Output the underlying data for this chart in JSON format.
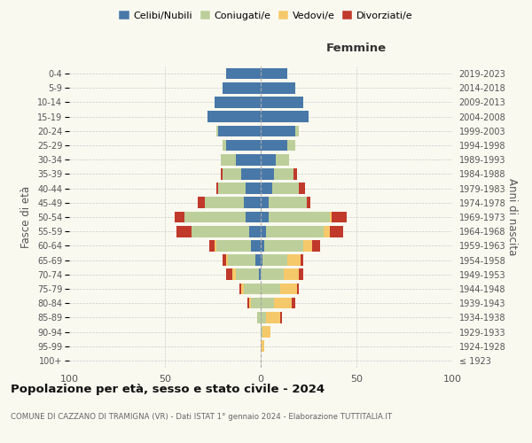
{
  "age_groups": [
    "100+",
    "95-99",
    "90-94",
    "85-89",
    "80-84",
    "75-79",
    "70-74",
    "65-69",
    "60-64",
    "55-59",
    "50-54",
    "45-49",
    "40-44",
    "35-39",
    "30-34",
    "25-29",
    "20-24",
    "15-19",
    "10-14",
    "5-9",
    "0-4"
  ],
  "birth_years": [
    "≤ 1923",
    "1924-1928",
    "1929-1933",
    "1934-1938",
    "1939-1943",
    "1944-1948",
    "1949-1953",
    "1954-1958",
    "1959-1963",
    "1964-1968",
    "1969-1973",
    "1974-1978",
    "1979-1983",
    "1984-1988",
    "1989-1993",
    "1994-1998",
    "1999-2003",
    "2004-2008",
    "2009-2013",
    "2014-2018",
    "2019-2023"
  ],
  "males": {
    "celibi": [
      0,
      0,
      0,
      0,
      0,
      0,
      1,
      3,
      5,
      6,
      8,
      9,
      8,
      10,
      13,
      18,
      22,
      28,
      24,
      20,
      18
    ],
    "coniugati": [
      0,
      0,
      0,
      2,
      5,
      9,
      12,
      14,
      18,
      30,
      32,
      20,
      14,
      10,
      8,
      2,
      1,
      0,
      0,
      0,
      0
    ],
    "vedovi": [
      0,
      0,
      0,
      0,
      1,
      1,
      2,
      1,
      1,
      0,
      0,
      0,
      0,
      0,
      0,
      0,
      0,
      0,
      0,
      0,
      0
    ],
    "divorziati": [
      0,
      0,
      0,
      0,
      1,
      1,
      3,
      2,
      3,
      8,
      5,
      4,
      1,
      1,
      0,
      0,
      0,
      0,
      0,
      0,
      0
    ]
  },
  "females": {
    "nubili": [
      0,
      0,
      0,
      0,
      0,
      0,
      0,
      1,
      2,
      3,
      4,
      4,
      6,
      7,
      8,
      14,
      18,
      25,
      22,
      18,
      14
    ],
    "coniugate": [
      0,
      0,
      1,
      3,
      7,
      10,
      12,
      13,
      20,
      30,
      32,
      20,
      14,
      10,
      7,
      4,
      2,
      0,
      0,
      0,
      0
    ],
    "vedove": [
      0,
      2,
      4,
      7,
      9,
      9,
      8,
      7,
      5,
      3,
      1,
      0,
      0,
      0,
      0,
      0,
      0,
      0,
      0,
      0,
      0
    ],
    "divorziate": [
      0,
      0,
      0,
      1,
      2,
      1,
      2,
      1,
      4,
      7,
      8,
      2,
      3,
      2,
      0,
      0,
      0,
      0,
      0,
      0,
      0
    ]
  },
  "colors": {
    "celibi": "#4878a8",
    "coniugati": "#bccf9a",
    "vedovi": "#f5c96a",
    "divorziati": "#c0392b"
  },
  "xlim": 100,
  "title": "Popolazione per età, sesso e stato civile - 2024",
  "subtitle": "COMUNE DI CAZZANO DI TRAMIGNA (VR) - Dati ISTAT 1° gennaio 2024 - Elaborazione TUTTITALIA.IT",
  "xlabel_right": "Femmine",
  "ylabel_left": "Fasce di età",
  "ylabel_right": "Anni di nascita",
  "legend_labels": [
    "Celibi/Nubili",
    "Coniugati/e",
    "Vedovi/e",
    "Divorziati/e"
  ],
  "bg_color": "#f9f9f0",
  "grid_color": "#cccccc"
}
